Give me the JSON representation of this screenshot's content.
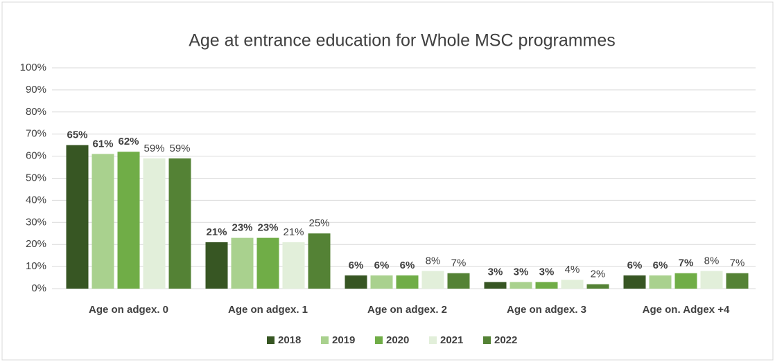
{
  "chart_data": {
    "type": "bar",
    "title": "Age at entrance education for  Whole MSC programmes",
    "categories": [
      "Age on adgex. 0",
      "Age on adgex. 1",
      "Age on adgex. 2",
      "Age on adgex. 3",
      "Age on. Adgex +4"
    ],
    "series": [
      {
        "name": "2018",
        "color": "#375623",
        "values": [
          65,
          21,
          6,
          3,
          6
        ],
        "value_labels": [
          "65%",
          "21%",
          "6%",
          "3%",
          "6%"
        ]
      },
      {
        "name": "2019",
        "color": "#a9d18e",
        "values": [
          61,
          23,
          6,
          3,
          6
        ],
        "value_labels": [
          "61%",
          "23%",
          "6%",
          "3%",
          "6%"
        ]
      },
      {
        "name": "2020",
        "color": "#70ad47",
        "values": [
          62,
          23,
          6,
          3,
          7
        ],
        "value_labels": [
          "62%",
          "23%",
          "6%",
          "3%",
          "7%"
        ]
      },
      {
        "name": "2021",
        "color": "#e2efda",
        "values": [
          59,
          21,
          8,
          4,
          8
        ],
        "value_labels": [
          "59%",
          "21%",
          "8%",
          "4%",
          "8%"
        ]
      },
      {
        "name": "2022",
        "color": "#548235",
        "values": [
          59,
          25,
          7,
          2,
          7
        ],
        "value_labels": [
          "59%",
          "25%",
          "7%",
          "2%",
          "7%"
        ]
      }
    ],
    "ylim": [
      0,
      100
    ],
    "yticks": [
      {
        "value": 0,
        "label": "0%"
      },
      {
        "value": 10,
        "label": "10%"
      },
      {
        "value": 20,
        "label": "20%"
      },
      {
        "value": 30,
        "label": "30%"
      },
      {
        "value": 40,
        "label": "40%"
      },
      {
        "value": 50,
        "label": "50%"
      },
      {
        "value": 60,
        "label": "60%"
      },
      {
        "value": 70,
        "label": "70%"
      },
      {
        "value": 80,
        "label": "80%"
      },
      {
        "value": 90,
        "label": "90%"
      },
      {
        "value": 100,
        "label": "100%"
      }
    ],
    "grid": true,
    "legend": "bottom"
  }
}
